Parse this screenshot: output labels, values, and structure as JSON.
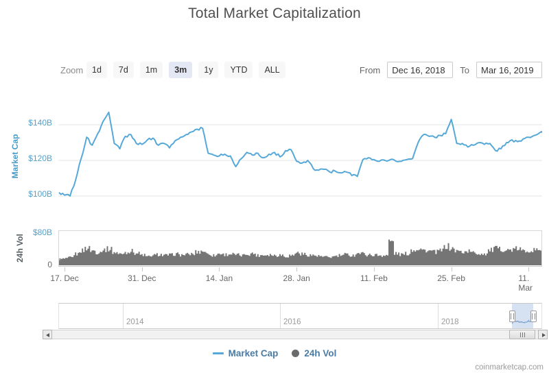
{
  "title": "Total Market Capitalization",
  "toolbar": {
    "zoom_label": "Zoom",
    "zoom_buttons": [
      "1d",
      "7d",
      "1m",
      "3m",
      "1y",
      "YTD",
      "ALL"
    ],
    "selected_zoom": "3m",
    "from_label": "From",
    "from_value": "Dec 16, 2018",
    "to_label": "To",
    "to_value": "Mar 16, 2019"
  },
  "legend": [
    {
      "label": "Market Cap",
      "marker": "line",
      "color": "#55a8d8"
    },
    {
      "label": "24h Vol",
      "marker": "circle",
      "color": "#6b6b6b"
    }
  ],
  "navigator": {
    "year_labels": [
      "2014",
      "2016",
      "2018"
    ],
    "window_from": "Dec 16, 2018",
    "window_to": "Mar 16, 2019"
  },
  "credit": "coinmarketcap.com",
  "colors": {
    "market_cap_line": "#55a8d8",
    "axis_label_blue": "#55a0cc",
    "volume_fill": "#757575",
    "nav_window_fill": "#c9dcf0"
  },
  "chart_data": [
    {
      "type": "line",
      "title": "Market Cap",
      "ylabel": "Market Cap",
      "series_name": "Market Cap",
      "color": "#55a8d8",
      "units": "billion USD",
      "x_start_date": "2018-12-16",
      "x_end_date": "2019-03-16",
      "x_interval": "daily",
      "xticklabels": [
        "17. Dec",
        "31. Dec",
        "14. Jan",
        "28. Jan",
        "11. Feb",
        "25. Feb",
        "11. Mar"
      ],
      "xtick_day_index": [
        1,
        15,
        29,
        43,
        57,
        71,
        85
      ],
      "yticks": [
        {
          "label": "$100B",
          "value": 100
        },
        {
          "label": "$120B",
          "value": 120
        },
        {
          "label": "$140B",
          "value": 140
        }
      ],
      "ylim": [
        92,
        152
      ],
      "grid": true,
      "values": [
        102,
        100.5,
        100,
        109,
        121,
        133,
        128.5,
        135,
        142,
        147,
        129.5,
        126.5,
        133.5,
        134.5,
        129.5,
        129,
        131.5,
        132.5,
        128.5,
        129.5,
        127,
        131,
        133,
        134.5,
        136,
        137.5,
        138,
        124,
        123,
        122.5,
        123.5,
        122.5,
        116.5,
        121,
        124.5,
        123,
        124,
        121.5,
        123.5,
        124.5,
        122,
        125.5,
        126,
        119.5,
        118.5,
        120,
        115.5,
        114.5,
        115,
        113.5,
        114,
        113,
        113.5,
        111.5,
        111,
        120.5,
        121.5,
        120.5,
        119.5,
        120,
        120.5,
        119.5,
        119.5,
        120.5,
        121,
        130,
        134.5,
        133.5,
        133,
        134,
        135,
        143,
        129.5,
        129.5,
        127.5,
        128.5,
        130,
        129,
        129.5,
        125.5,
        126.5,
        130,
        131.5,
        130.5,
        132,
        133,
        134,
        135.5,
        136,
        136.5,
        137.5
      ]
    },
    {
      "type": "area",
      "title": "24h Vol",
      "ylabel": "24h Vol",
      "series_name": "24h Vol",
      "color": "#757575",
      "units": "billion USD",
      "x_start_date": "2018-12-16",
      "x_end_date": "2019-03-16",
      "x_interval": "daily",
      "yticks": [
        {
          "label": "0",
          "value": 0
        },
        {
          "label": "$80B",
          "value": 80
        }
      ],
      "ylim": [
        0,
        80
      ],
      "grid": false,
      "values": [
        14,
        15,
        18,
        26,
        34,
        40,
        34,
        30,
        36,
        38,
        30,
        26,
        30,
        33,
        28,
        24,
        20,
        23,
        25,
        23,
        24,
        26,
        24,
        25,
        26,
        31,
        33,
        26,
        23,
        27,
        25,
        26,
        24,
        23,
        26,
        27,
        23,
        24,
        25,
        23,
        24,
        21,
        23,
        29,
        26,
        24,
        23,
        21,
        19,
        19,
        21,
        23,
        25,
        23,
        28,
        27,
        24,
        24,
        23,
        23,
        55,
        27,
        25,
        27,
        36,
        39,
        35,
        33,
        31,
        34,
        44,
        39,
        33,
        31,
        33,
        29,
        27,
        27,
        35,
        39,
        37,
        35,
        36,
        38,
        33,
        35,
        35,
        37,
        35,
        37,
        41
      ]
    }
  ]
}
